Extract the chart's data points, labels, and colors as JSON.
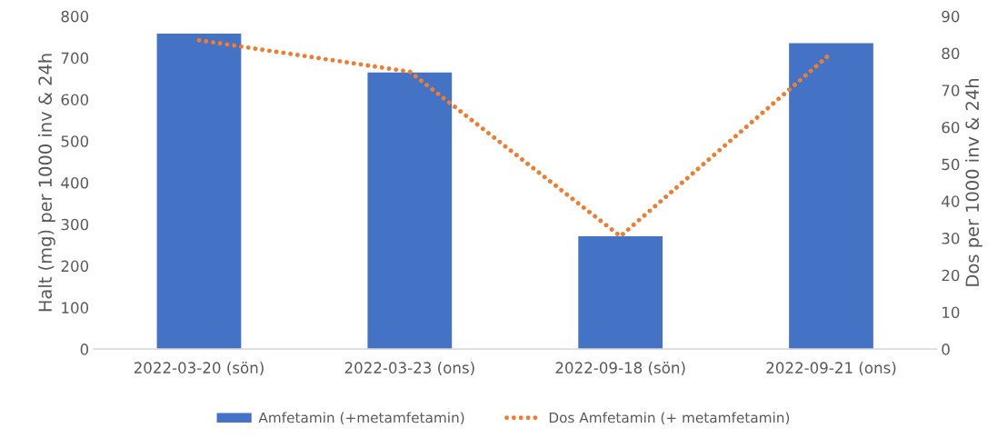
{
  "chart_data": {
    "type": "bar",
    "categories": [
      "2022-03-20 (sön)",
      "2022-03-23 (ons)",
      "2022-09-18 (sön)",
      "2022-09-21 (ons)"
    ],
    "ylabel": "Halt (mg) per 1000 inv & 24h",
    "y2label": "Dos per 1000 inv & 24h",
    "ylim": [
      0,
      800
    ],
    "yticks": [
      0,
      100,
      200,
      300,
      400,
      500,
      600,
      700,
      800
    ],
    "y2lim": [
      0,
      90
    ],
    "y2ticks": [
      0,
      10,
      20,
      30,
      40,
      50,
      60,
      70,
      80,
      90
    ],
    "series": [
      {
        "name": "Amfetamin (+metamfetamin)",
        "type": "bar",
        "color": "#4472c4",
        "values": [
          758,
          665,
          271,
          735
        ]
      },
      {
        "name": "Dos Amfetamin (+ metamfetamin)",
        "type": "line",
        "axis": "y2",
        "color": "#ed7d31",
        "line_style": "dotted",
        "values": [
          83.5,
          75,
          30.5,
          80
        ]
      }
    ],
    "legend": "bottom",
    "grid": false
  }
}
